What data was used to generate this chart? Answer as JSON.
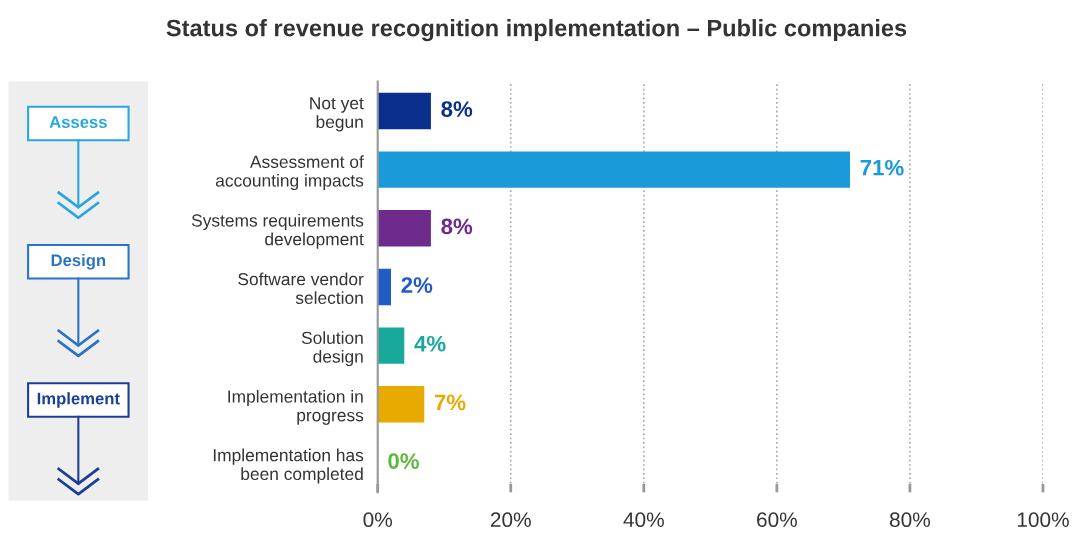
{
  "chart_data": {
    "type": "bar",
    "orientation": "horizontal",
    "title": "Status of revenue recognition implementation – Public companies",
    "categories": [
      "Not yet\nbegun",
      "Assessment of\naccounting impacts",
      "Systems requirements\ndevelopment",
      "Software vendor\nselection",
      "Solution\ndesign",
      "Implementation in\nprogress",
      "Implementation has\nbeen completed"
    ],
    "values": [
      8,
      71,
      8,
      2,
      4,
      7,
      0
    ],
    "colors": [
      "#0b2f8c",
      "#1a9ad9",
      "#6e2a8c",
      "#1f5cc4",
      "#19a99b",
      "#e8a900",
      "#5cb83a"
    ],
    "value_labels": [
      "8%",
      "71%",
      "8%",
      "2%",
      "4%",
      "7%",
      "0%"
    ],
    "xlim": [
      0,
      100
    ],
    "xticks": [
      {
        "value": 0,
        "label": "0%"
      },
      {
        "value": 20,
        "label": "20%"
      },
      {
        "value": 40,
        "label": "40%"
      },
      {
        "value": 60,
        "label": "60%"
      },
      {
        "value": 80,
        "label": "80%"
      },
      {
        "value": 100,
        "label": "100%"
      }
    ],
    "grid": "x",
    "annotations": [
      "Assess",
      "Design",
      "Implement"
    ]
  }
}
